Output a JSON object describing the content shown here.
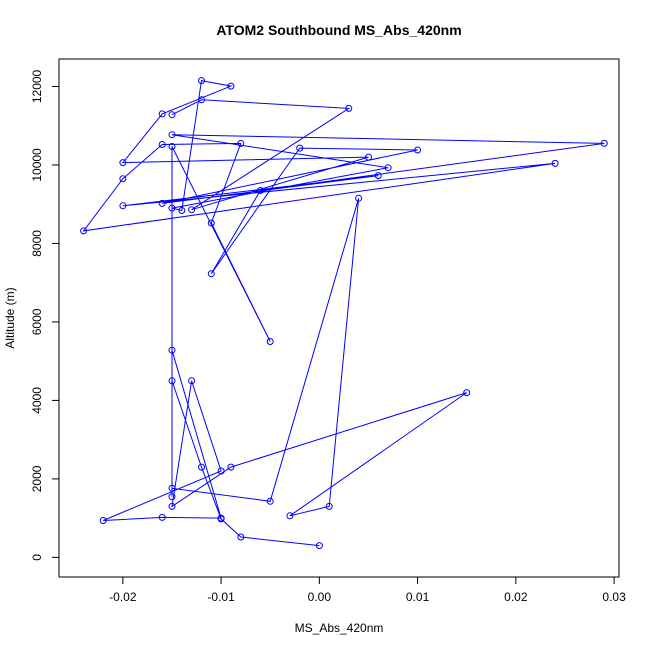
{
  "chart_data": {
    "type": "line",
    "title": "ATOM2 Southbound MS_Abs_420nm",
    "xlabel": "MS_Abs_420nm",
    "ylabel": "Altitude (m)",
    "xlim": [
      -0.0265,
      0.0305
    ],
    "ylim": [
      -500,
      12700
    ],
    "xticks": [
      -0.02,
      -0.01,
      0.0,
      0.01,
      0.02,
      0.03
    ],
    "xtick_labels": [
      "-0.02",
      "-0.01",
      "0.00",
      "0.01",
      "0.02",
      "0.03"
    ],
    "yticks": [
      0,
      2000,
      4000,
      6000,
      8000,
      10000,
      12000
    ],
    "ytick_labels": [
      "0",
      "2000",
      "4000",
      "6000",
      "8000",
      "10000",
      "12000"
    ],
    "grid": false,
    "line_color": "#0000ff",
    "marker": "open-circle",
    "series": [
      {
        "name": "MS_Abs_420nm",
        "x": [
          0.0,
          -0.008,
          -0.01,
          -0.012,
          -0.015,
          -0.015,
          -0.01,
          -0.016,
          -0.022,
          -0.01,
          -0.013,
          -0.015,
          -0.009,
          0.015,
          -0.003,
          0.001,
          0.004,
          -0.005,
          -0.015,
          -0.015,
          -0.015,
          -0.005,
          -0.011,
          -0.008,
          -0.016,
          -0.02,
          -0.024,
          0.024,
          -0.02,
          0.006,
          -0.016,
          0.01,
          -0.002,
          -0.011,
          -0.006,
          0.029,
          -0.015,
          0.007,
          -0.015,
          -0.014,
          -0.012,
          -0.009,
          -0.016,
          -0.02,
          0.005,
          -0.013,
          0.003,
          -0.012,
          -0.015
        ],
        "y": [
          300,
          520,
          980,
          2300,
          4500,
          5280,
          1000,
          1020,
          940,
          2200,
          4500,
          1300,
          2300,
          4200,
          1060,
          1300,
          9150,
          1430,
          1760,
          1550,
          10470,
          5500,
          8520,
          10550,
          10520,
          9650,
          8320,
          10040,
          8960,
          9730,
          9020,
          10380,
          10430,
          7230,
          9350,
          10550,
          10770,
          9930,
          8900,
          8840,
          12150,
          12010,
          11300,
          10060,
          10200,
          8860,
          11440,
          11660,
          11280
        ]
      }
    ]
  }
}
